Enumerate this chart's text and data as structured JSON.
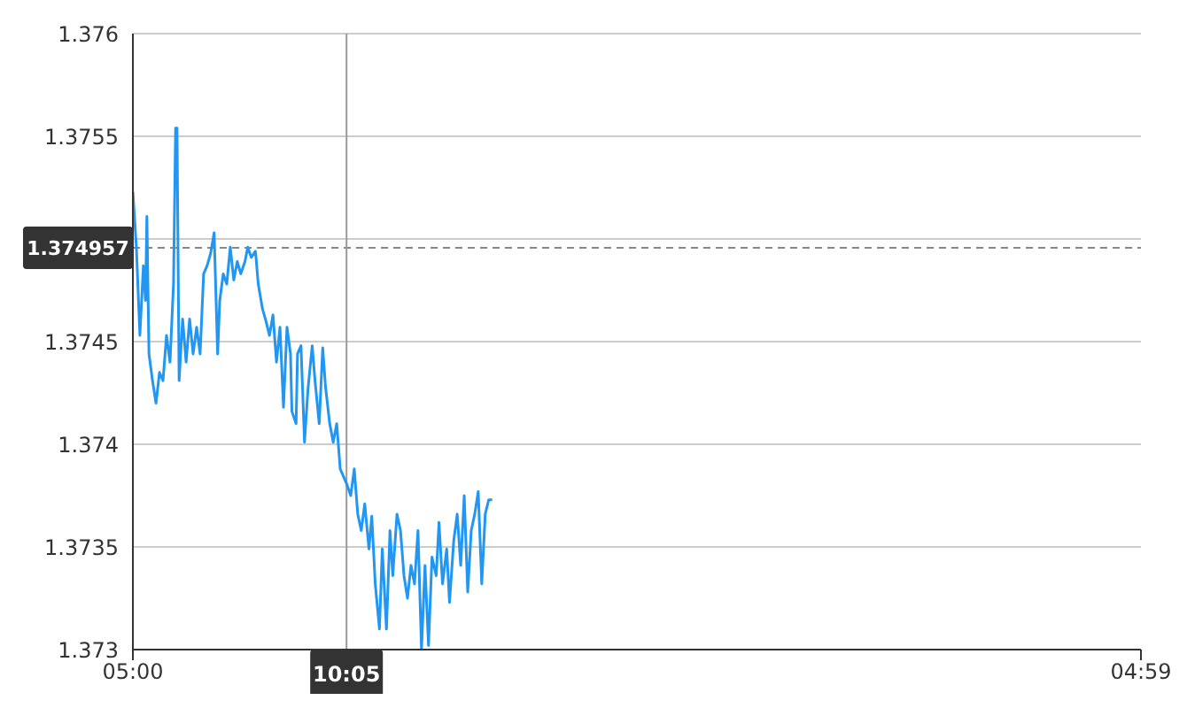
{
  "chart_data": {
    "type": "line",
    "marker": "none",
    "grid": "y",
    "legend": false,
    "xlim": [
      "2000-01-01T05:00",
      "2000-01-02T04:59"
    ],
    "xticks": [
      {
        "value": "2000-01-01T05:00",
        "label": "05:00"
      },
      {
        "value": "2000-01-02T04:59",
        "label": "04:59"
      }
    ],
    "ylim": [
      1.373,
      1.376
    ],
    "yticks": [
      1.373,
      1.3735,
      1.374,
      1.3745,
      {
        "value": 1.375,
        "label": null
      },
      1.3755,
      1.376
    ],
    "ref_lines": [
      {
        "axis": "y",
        "value": 1.374957,
        "label": "1.374957",
        "line_style": "dashed",
        "color": "#888888"
      },
      {
        "axis": "x",
        "value": "2000-01-01T10:05",
        "label": "10:05",
        "line_style": "solid",
        "color": "#999999"
      }
    ],
    "series": [
      {
        "color": "#2196f3",
        "x": [
          "2000-01-01T05:00",
          "2000-01-01T05:05",
          "2000-01-01T05:10",
          "2000-01-01T05:15",
          "2000-01-01T05:18",
          "2000-01-01T05:20",
          "2000-01-01T05:23",
          "2000-01-01T05:28",
          "2000-01-01T05:33",
          "2000-01-01T05:38",
          "2000-01-01T05:43",
          "2000-01-01T05:48",
          "2000-01-01T05:53",
          "2000-01-01T05:58",
          "2000-01-01T06:01",
          "2000-01-01T06:03",
          "2000-01-01T06:06",
          "2000-01-01T06:11",
          "2000-01-01T06:16",
          "2000-01-01T06:21",
          "2000-01-01T06:26",
          "2000-01-01T06:31",
          "2000-01-01T06:36",
          "2000-01-01T06:41",
          "2000-01-01T06:46",
          "2000-01-01T06:51",
          "2000-01-01T06:56",
          "2000-01-01T07:01",
          "2000-01-01T07:04",
          "2000-01-01T07:09",
          "2000-01-01T07:14",
          "2000-01-01T07:19",
          "2000-01-01T07:24",
          "2000-01-01T07:29",
          "2000-01-01T07:34",
          "2000-01-01T07:40",
          "2000-01-01T07:44",
          "2000-01-01T07:49",
          "2000-01-01T07:55",
          "2000-01-01T07:59",
          "2000-01-01T08:05",
          "2000-01-01T08:10",
          "2000-01-01T08:15",
          "2000-01-01T08:20",
          "2000-01-01T08:25",
          "2000-01-01T08:30",
          "2000-01-01T08:35",
          "2000-01-01T08:40",
          "2000-01-01T08:45",
          "2000-01-01T08:47",
          "2000-01-01T08:53",
          "2000-01-01T08:55",
          "2000-01-01T09:00",
          "2000-01-01T09:05",
          "2000-01-01T09:10",
          "2000-01-01T09:16",
          "2000-01-01T09:20",
          "2000-01-01T09:26",
          "2000-01-01T09:31",
          "2000-01-01T09:35",
          "2000-01-01T09:41",
          "2000-01-01T09:46",
          "2000-01-01T09:51",
          "2000-01-01T09:56",
          "2000-01-01T10:01",
          "2000-01-01T10:06",
          "2000-01-01T10:11",
          "2000-01-01T10:16",
          "2000-01-01T10:21",
          "2000-01-01T10:26",
          "2000-01-01T10:31",
          "2000-01-01T10:37",
          "2000-01-01T10:41",
          "2000-01-01T10:46",
          "2000-01-01T10:52",
          "2000-01-01T10:56",
          "2000-01-01T11:02",
          "2000-01-01T11:07",
          "2000-01-01T11:11",
          "2000-01-01T11:17",
          "2000-01-01T11:22",
          "2000-01-01T11:27",
          "2000-01-01T11:32",
          "2000-01-01T11:37",
          "2000-01-01T11:42",
          "2000-01-01T11:47",
          "2000-01-01T11:52",
          "2000-01-01T11:57",
          "2000-01-01T12:02",
          "2000-01-01T12:07",
          "2000-01-01T12:13",
          "2000-01-01T12:17",
          "2000-01-01T12:22",
          "2000-01-01T12:28",
          "2000-01-01T12:32",
          "2000-01-01T12:38",
          "2000-01-01T12:43",
          "2000-01-01T12:48",
          "2000-01-01T12:53",
          "2000-01-01T12:58",
          "2000-01-01T13:03",
          "2000-01-01T13:08",
          "2000-01-01T13:13",
          "2000-01-01T13:18",
          "2000-01-01T13:23",
          "2000-01-01T13:28",
          "2000-01-01T13:33"
        ],
        "values": [
          1.37523,
          1.37496,
          1.37453,
          1.37487,
          1.3747,
          1.37511,
          1.37444,
          1.37431,
          1.3742,
          1.37435,
          1.37431,
          1.37453,
          1.3744,
          1.37478,
          1.37554,
          1.37554,
          1.37431,
          1.37461,
          1.3744,
          1.37461,
          1.37444,
          1.37457,
          1.37444,
          1.37483,
          1.37487,
          1.37493,
          1.37503,
          1.37444,
          1.3747,
          1.37483,
          1.37478,
          1.37496,
          1.3748,
          1.37489,
          1.37483,
          1.37489,
          1.37496,
          1.37491,
          1.37494,
          1.37478,
          1.37466,
          1.3746,
          1.37453,
          1.37463,
          1.3744,
          1.37457,
          1.37418,
          1.37457,
          1.37444,
          1.37416,
          1.3741,
          1.37444,
          1.37448,
          1.37401,
          1.37427,
          1.37448,
          1.37431,
          1.3741,
          1.37447,
          1.37428,
          1.3741,
          1.37401,
          1.3741,
          1.37388,
          1.37384,
          1.3738,
          1.37375,
          1.37388,
          1.37366,
          1.37358,
          1.37371,
          1.37349,
          1.37365,
          1.37332,
          1.3731,
          1.37349,
          1.3731,
          1.37358,
          1.37336,
          1.37366,
          1.37358,
          1.37336,
          1.37325,
          1.37341,
          1.37332,
          1.37358,
          1.373,
          1.37341,
          1.37302,
          1.37345,
          1.37336,
          1.37362,
          1.37332,
          1.37349,
          1.37323,
          1.37353,
          1.37366,
          1.37341,
          1.37375,
          1.37328,
          1.37358,
          1.37366,
          1.37377,
          1.37332,
          1.37366,
          1.37373,
          1.37373
        ]
      }
    ]
  }
}
